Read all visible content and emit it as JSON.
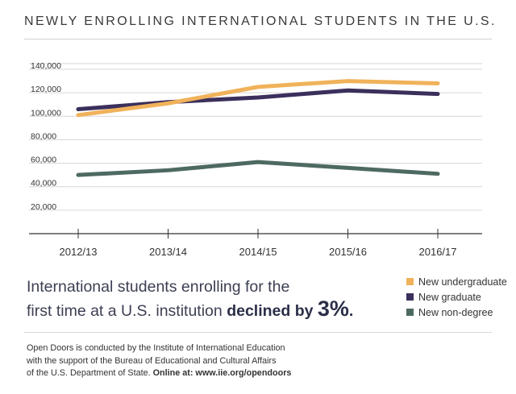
{
  "title": "NEWLY ENROLLING INTERNATIONAL STUDENTS IN THE U.S.",
  "headline": {
    "line1": "International students enrolling for the",
    "line2_prefix": "first time at a U.S. institution",
    "line2_bold": "declined by",
    "line2_big": "3%",
    "line2_suffix": "."
  },
  "footer": {
    "line1": "Open Doors is conducted by the Institute of International Education",
    "line2": "with the support of the Bureau of Educational and Cultural Affairs",
    "line3_prefix": "of the U.S. Department of State.",
    "line3_bold": "Online at: www.iie.org/opendoors"
  },
  "colors": {
    "undergraduate": "#f0b25a",
    "graduate": "#3b2f5c",
    "non_degree": "#4d6a62",
    "grid": "#d6d6d6",
    "axis": "#333333"
  },
  "chart_data": {
    "type": "line",
    "categories": [
      "2012/13",
      "2013/14",
      "2014/15",
      "2015/16",
      "2016/17"
    ],
    "ylim": [
      0,
      140000
    ],
    "yticks": [
      20000,
      40000,
      60000,
      80000,
      100000,
      120000,
      140000
    ],
    "ytick_labels": [
      "20,000",
      "40,000",
      "60,000",
      "80,000",
      "100,000",
      "120,000",
      "140,000"
    ],
    "grid": true,
    "legend": "bottom-right",
    "series": [
      {
        "name": "New undergraduate",
        "color": "#f0b25a",
        "values": [
          101000,
          111000,
          125000,
          130000,
          128000
        ]
      },
      {
        "name": "New graduate",
        "color": "#3b2f5c",
        "values": [
          106000,
          112000,
          116000,
          122000,
          119000
        ]
      },
      {
        "name": "New non-degree",
        "color": "#4d6a62",
        "values": [
          50000,
          54000,
          61000,
          56000,
          51000
        ]
      }
    ]
  }
}
